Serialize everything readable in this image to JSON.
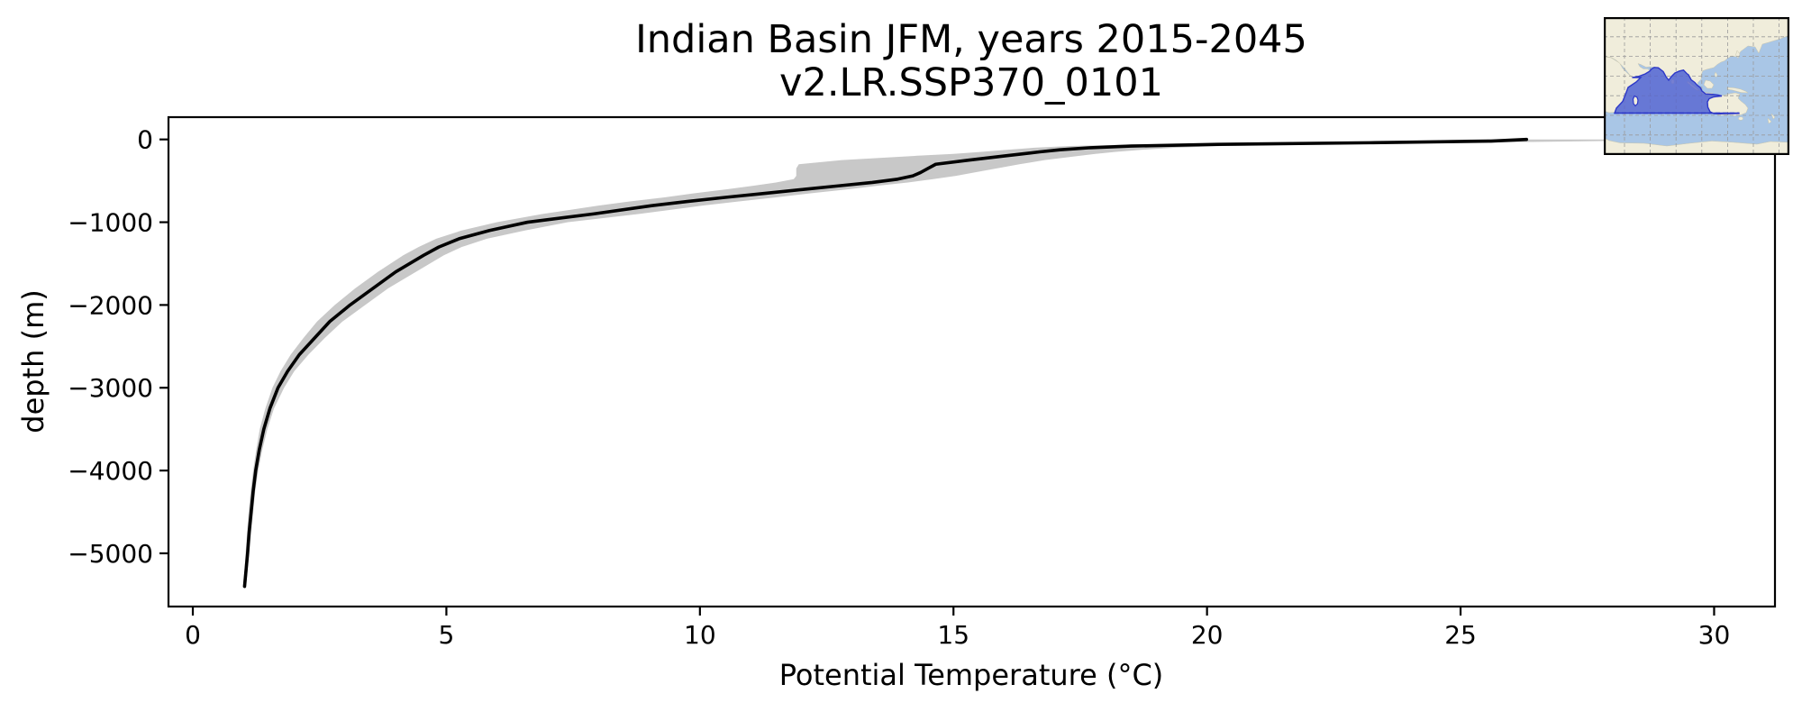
{
  "figure": {
    "title_line1": "Indian Basin JFM, years 2015-2045",
    "title_line2": "v2.LR.SSP370_0101",
    "xlabel": "Potential Temperature (°C)",
    "ylabel": "depth (m)"
  },
  "chart_data": {
    "type": "line",
    "title": "Indian Basin JFM, years 2015-2045",
    "subtitle": "v2.LR.SSP370_0101",
    "xlabel": "Potential Temperature (°C)",
    "ylabel": "depth (m)",
    "xlim": [
      -0.48,
      31.2
    ],
    "ylim": [
      -5643,
      269
    ],
    "grid": false,
    "legend": "none",
    "x_ticks": {
      "values": [
        0,
        5,
        10,
        15,
        20,
        25,
        30
      ],
      "labels": [
        "0",
        "5",
        "10",
        "15",
        "20",
        "25",
        "30"
      ]
    },
    "y_ticks": {
      "values": [
        0,
        -1000,
        -2000,
        -3000,
        -4000,
        -5000
      ],
      "labels": [
        "0",
        "−1000",
        "−2000",
        "−3000",
        "−4000",
        "−5000"
      ]
    },
    "profile": {
      "depth_m": [
        0,
        -20,
        -40,
        -60,
        -80,
        -100,
        -125,
        -150,
        -175,
        -200,
        -250,
        -300,
        -350,
        -400,
        -440,
        -480,
        -520,
        -560,
        -600,
        -650,
        -700,
        -750,
        -800,
        -900,
        -1000,
        -1100,
        -1200,
        -1300,
        -1400,
        -1600,
        -1800,
        -2000,
        -2200,
        -2400,
        -2600,
        -2800,
        -3000,
        -3250,
        -3500,
        -3750,
        -4000,
        -4250,
        -4500,
        -4750,
        -5000,
        -5200,
        -5400
      ],
      "mean_c": [
        26.3,
        25.6,
        23.2,
        20.2,
        18.5,
        17.7,
        17.1,
        16.7,
        16.35,
        16.0,
        15.3,
        14.65,
        14.5,
        14.35,
        14.2,
        13.9,
        13.4,
        12.75,
        12.1,
        11.3,
        10.5,
        9.75,
        9.05,
        7.9,
        6.6,
        5.85,
        5.25,
        4.85,
        4.55,
        4.0,
        3.55,
        3.1,
        2.7,
        2.4,
        2.1,
        1.87,
        1.68,
        1.52,
        1.4,
        1.31,
        1.24,
        1.19,
        1.15,
        1.11,
        1.08,
        1.05,
        1.02
      ],
      "min_c": [
        25.2,
        24.0,
        21.5,
        18.6,
        17.3,
        16.6,
        16.05,
        15.55,
        15.0,
        14.2,
        12.8,
        11.95,
        11.9,
        11.9,
        11.9,
        11.85,
        11.5,
        11.05,
        10.55,
        9.9,
        9.3,
        8.6,
        8.0,
        6.9,
        6.0,
        5.3,
        4.8,
        4.45,
        4.15,
        3.65,
        3.2,
        2.8,
        2.45,
        2.18,
        1.93,
        1.73,
        1.57,
        1.43,
        1.32,
        1.25,
        1.19,
        1.14,
        1.1,
        1.07,
        1.04,
        1.02,
        0.99
      ],
      "max_c": [
        29.7,
        27.8,
        25.2,
        22.2,
        20.3,
        19.4,
        18.7,
        18.2,
        17.8,
        17.45,
        16.8,
        16.3,
        15.85,
        15.4,
        15.05,
        14.6,
        14.1,
        13.5,
        12.95,
        12.2,
        11.5,
        10.75,
        10.05,
        8.8,
        7.4,
        6.55,
        5.8,
        5.3,
        4.95,
        4.4,
        3.85,
        3.4,
        2.95,
        2.6,
        2.28,
        2.0,
        1.8,
        1.6,
        1.47,
        1.37,
        1.29,
        1.23,
        1.19,
        1.15,
        1.11,
        1.08,
        1.05
      ]
    },
    "series": [
      {
        "name": "ensemble-mean potential temperature",
        "style": "solid black line",
        "color": "#000000"
      },
      {
        "name": "ensemble min-max range",
        "style": "shaded band",
        "color": "#c8c8c8"
      }
    ]
  },
  "inset_map": {
    "description": "world map with Indian Ocean basin region highlighted",
    "colors": {
      "ocean": "#a9c6e6",
      "land": "#f0eddb",
      "land_edge": "#c9c6ae",
      "region_fill": "#5561d0",
      "region_edge": "#2d38c8",
      "graticule": "#9a9a9a",
      "border": "#000000"
    }
  },
  "style": {
    "line_color": "#000000",
    "band_color": "#c8c8c8",
    "spine_color": "#000000",
    "background": "#ffffff"
  }
}
